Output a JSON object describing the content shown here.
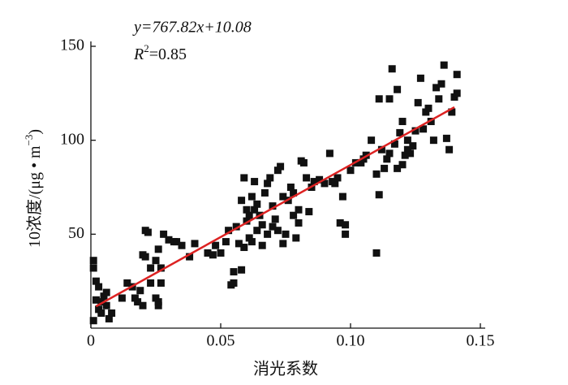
{
  "chart_data": {
    "type": "scatter",
    "equation": "y=767.82x+10.08",
    "r2_label": "R",
    "r2_sup": "2",
    "r2_value": "=0.85",
    "xlabel": "消光系数",
    "ylabel": "10浓度/(μg • m",
    "ylabel_sup": "−3",
    "ylabel_end": ")",
    "xlim": [
      0,
      0.15
    ],
    "ylim": [
      0,
      150
    ],
    "xticks": [
      0,
      0.05,
      {
        "value": 0.1,
        "label": "0.10"
      },
      0.15
    ],
    "yticks": [
      50,
      100,
      150
    ],
    "color": "#111111",
    "fit": {
      "slope": 767.82,
      "intercept": 10.08,
      "x_range": [
        0.002,
        0.14
      ],
      "color": "#dd2222"
    },
    "x": [
      0.001,
      0.001,
      0.002,
      0.003,
      0.002,
      0.003,
      0.004,
      0.005,
      0.006,
      0.007,
      0.008,
      0.001,
      0.004,
      0.006,
      0.012,
      0.014,
      0.016,
      0.017,
      0.018,
      0.019,
      0.02,
      0.02,
      0.021,
      0.022,
      0.021,
      0.023,
      0.023,
      0.025,
      0.026,
      0.026,
      0.025,
      0.027,
      0.027,
      0.026,
      0.028,
      0.03,
      0.032,
      0.033,
      0.035,
      0.04,
      0.038,
      0.045,
      0.047,
      0.048,
      0.05,
      0.052,
      0.054,
      0.055,
      0.055,
      0.058,
      0.053,
      0.056,
      0.058,
      0.059,
      0.06,
      0.06,
      0.061,
      0.062,
      0.063,
      0.064,
      0.065,
      0.066,
      0.067,
      0.068,
      0.069,
      0.07,
      0.071,
      0.072,
      0.073,
      0.074,
      0.075,
      0.076,
      0.077,
      0.078,
      0.079,
      0.08,
      0.081,
      0.082,
      0.083,
      0.084,
      0.085,
      0.086,
      0.088,
      0.09,
      0.092,
      0.093,
      0.094,
      0.095,
      0.096,
      0.097,
      0.098,
      0.098,
      0.1,
      0.102,
      0.104,
      0.106,
      0.108,
      0.105,
      0.057,
      0.059,
      0.062,
      0.064,
      0.066,
      0.068,
      0.07,
      0.072,
      0.074,
      0.078,
      0.08,
      0.061,
      0.063,
      0.11,
      0.111,
      0.11,
      0.111,
      0.112,
      0.113,
      0.114,
      0.115,
      0.116,
      0.117,
      0.118,
      0.119,
      0.12,
      0.121,
      0.122,
      0.123,
      0.124,
      0.125,
      0.126,
      0.127,
      0.128,
      0.129,
      0.13,
      0.131,
      0.132,
      0.133,
      0.134,
      0.135,
      0.136,
      0.137,
      0.138,
      0.139,
      0.14,
      0.141,
      0.141,
      0.118,
      0.12,
      0.122,
      0.115
    ],
    "values": [
      36,
      32,
      25,
      22,
      15,
      10,
      8,
      17,
      12,
      5,
      8,
      4,
      14,
      19,
      16,
      24,
      22,
      16,
      14,
      20,
      12,
      39,
      52,
      51,
      38,
      32,
      24,
      16,
      14,
      12,
      36,
      32,
      24,
      42,
      50,
      47,
      46,
      46,
      44,
      45,
      38,
      40,
      39,
      44,
      40,
      46,
      23,
      24,
      30,
      31,
      52,
      54,
      68,
      80,
      63,
      57,
      48,
      70,
      78,
      66,
      60,
      55,
      72,
      77,
      80,
      65,
      58,
      84,
      86,
      70,
      50,
      68,
      75,
      72,
      48,
      63,
      89,
      88,
      80,
      62,
      75,
      78,
      79,
      77,
      93,
      78,
      77,
      80,
      56,
      70,
      55,
      50,
      84,
      88,
      88,
      92,
      100,
      90,
      45,
      43,
      46,
      52,
      44,
      50,
      54,
      52,
      45,
      60,
      56,
      60,
      63,
      40,
      71,
      82,
      122,
      95,
      85,
      90,
      122,
      138,
      98,
      85,
      104,
      110,
      92,
      100,
      93,
      97,
      105,
      120,
      133,
      106,
      115,
      117,
      110,
      100,
      128,
      122,
      130,
      140,
      101,
      95,
      115,
      123,
      135,
      125,
      127,
      87,
      95,
      93
    ]
  }
}
